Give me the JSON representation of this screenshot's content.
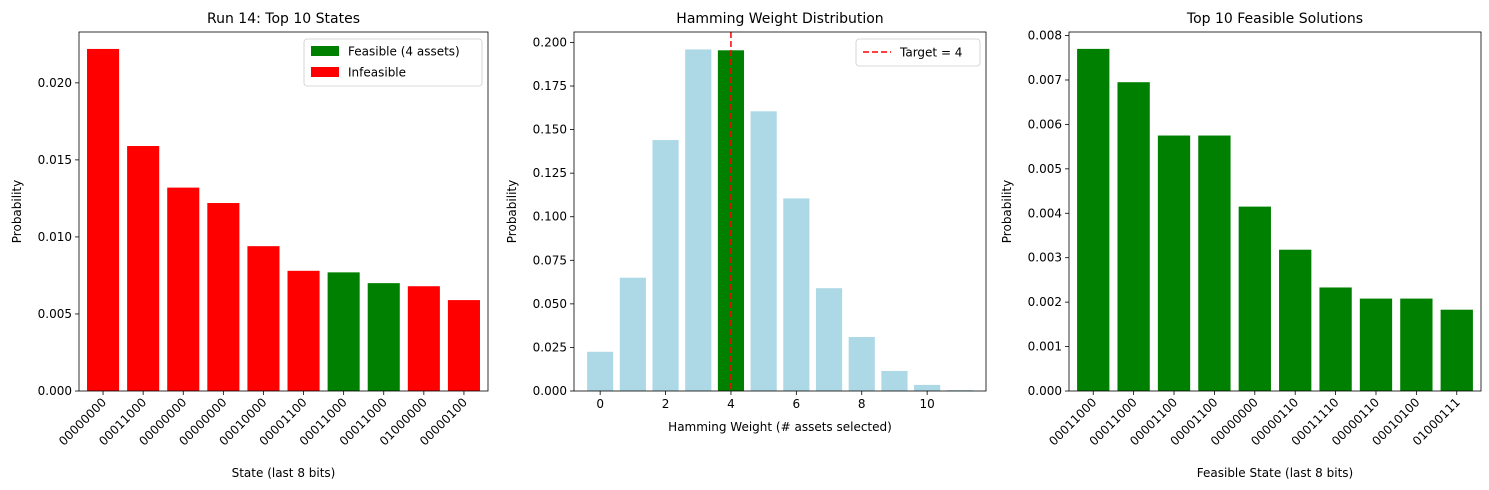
{
  "chart_data": [
    {
      "type": "bar",
      "title": "Run 14: Top 10 States",
      "xlabel": "State (last 8 bits)",
      "ylabel": "Probability",
      "categories": [
        "00000000",
        "00011000",
        "00000000",
        "00000000",
        "00010000",
        "00001100",
        "00011000",
        "00011000",
        "01000000",
        "00000100"
      ],
      "values": [
        0.0222,
        0.0159,
        0.0132,
        0.0122,
        0.0094,
        0.0078,
        0.0077,
        0.007,
        0.0068,
        0.0059
      ],
      "feasible": [
        false,
        false,
        false,
        false,
        false,
        false,
        true,
        true,
        false,
        false
      ],
      "colors": {
        "feasible": "#008000",
        "infeasible": "#ff0000"
      },
      "legend": [
        {
          "label": "Feasible (4 assets)",
          "color": "#008000"
        },
        {
          "label": "Infeasible",
          "color": "#ff0000"
        }
      ],
      "legend_position": "top-right",
      "ylim": [
        0,
        0.0233
      ],
      "yticks": [
        "0.000",
        "0.005",
        "0.010",
        "0.015",
        "0.020"
      ],
      "ytick_values": [
        0,
        0.005,
        0.01,
        0.015,
        0.02
      ],
      "grid": false
    },
    {
      "type": "bar",
      "title": "Hamming Weight Distribution",
      "xlabel": "Hamming Weight (# assets selected)",
      "ylabel": "Probability",
      "x": [
        0,
        1,
        2,
        3,
        4,
        5,
        6,
        7,
        8,
        9,
        10,
        11
      ],
      "values": [
        0.0225,
        0.065,
        0.144,
        0.196,
        0.1955,
        0.1605,
        0.1105,
        0.059,
        0.031,
        0.0115,
        0.0035,
        0.0005
      ],
      "highlight_x": 4,
      "colors": {
        "bar": "#add8e6",
        "highlight": "#008000",
        "target_line": "#ff0000"
      },
      "target": 4,
      "legend": [
        {
          "label": "Target = 4",
          "color": "#ff0000",
          "style": "dashed"
        }
      ],
      "legend_position": "top-right",
      "xlim": [
        -0.8,
        11.8
      ],
      "ylim": [
        0,
        0.206
      ],
      "xticks": [
        "0",
        "2",
        "4",
        "6",
        "8",
        "10"
      ],
      "xtick_values": [
        0,
        2,
        4,
        6,
        8,
        10
      ],
      "yticks": [
        "0.000",
        "0.025",
        "0.050",
        "0.075",
        "0.100",
        "0.125",
        "0.150",
        "0.175",
        "0.200"
      ],
      "ytick_values": [
        0,
        0.025,
        0.05,
        0.075,
        0.1,
        0.125,
        0.15,
        0.175,
        0.2
      ],
      "grid": false
    },
    {
      "type": "bar",
      "title": "Top 10 Feasible Solutions",
      "xlabel": "Feasible State (last 8 bits)",
      "ylabel": "Probability",
      "categories": [
        "00011000",
        "00011000",
        "00001100",
        "00001100",
        "00000000",
        "00000110",
        "00011110",
        "00000110",
        "00010100",
        "01000111"
      ],
      "values": [
        0.0077,
        0.00695,
        0.00575,
        0.00575,
        0.00415,
        0.00318,
        0.00233,
        0.00208,
        0.00208,
        0.00183
      ],
      "colors": {
        "bar": "#008000"
      },
      "ylim": [
        0,
        0.00808
      ],
      "yticks": [
        "0.000",
        "0.001",
        "0.002",
        "0.003",
        "0.004",
        "0.005",
        "0.006",
        "0.007",
        "0.008"
      ],
      "ytick_values": [
        0,
        0.001,
        0.002,
        0.003,
        0.004,
        0.005,
        0.006,
        0.007,
        0.008
      ],
      "grid": false
    }
  ]
}
